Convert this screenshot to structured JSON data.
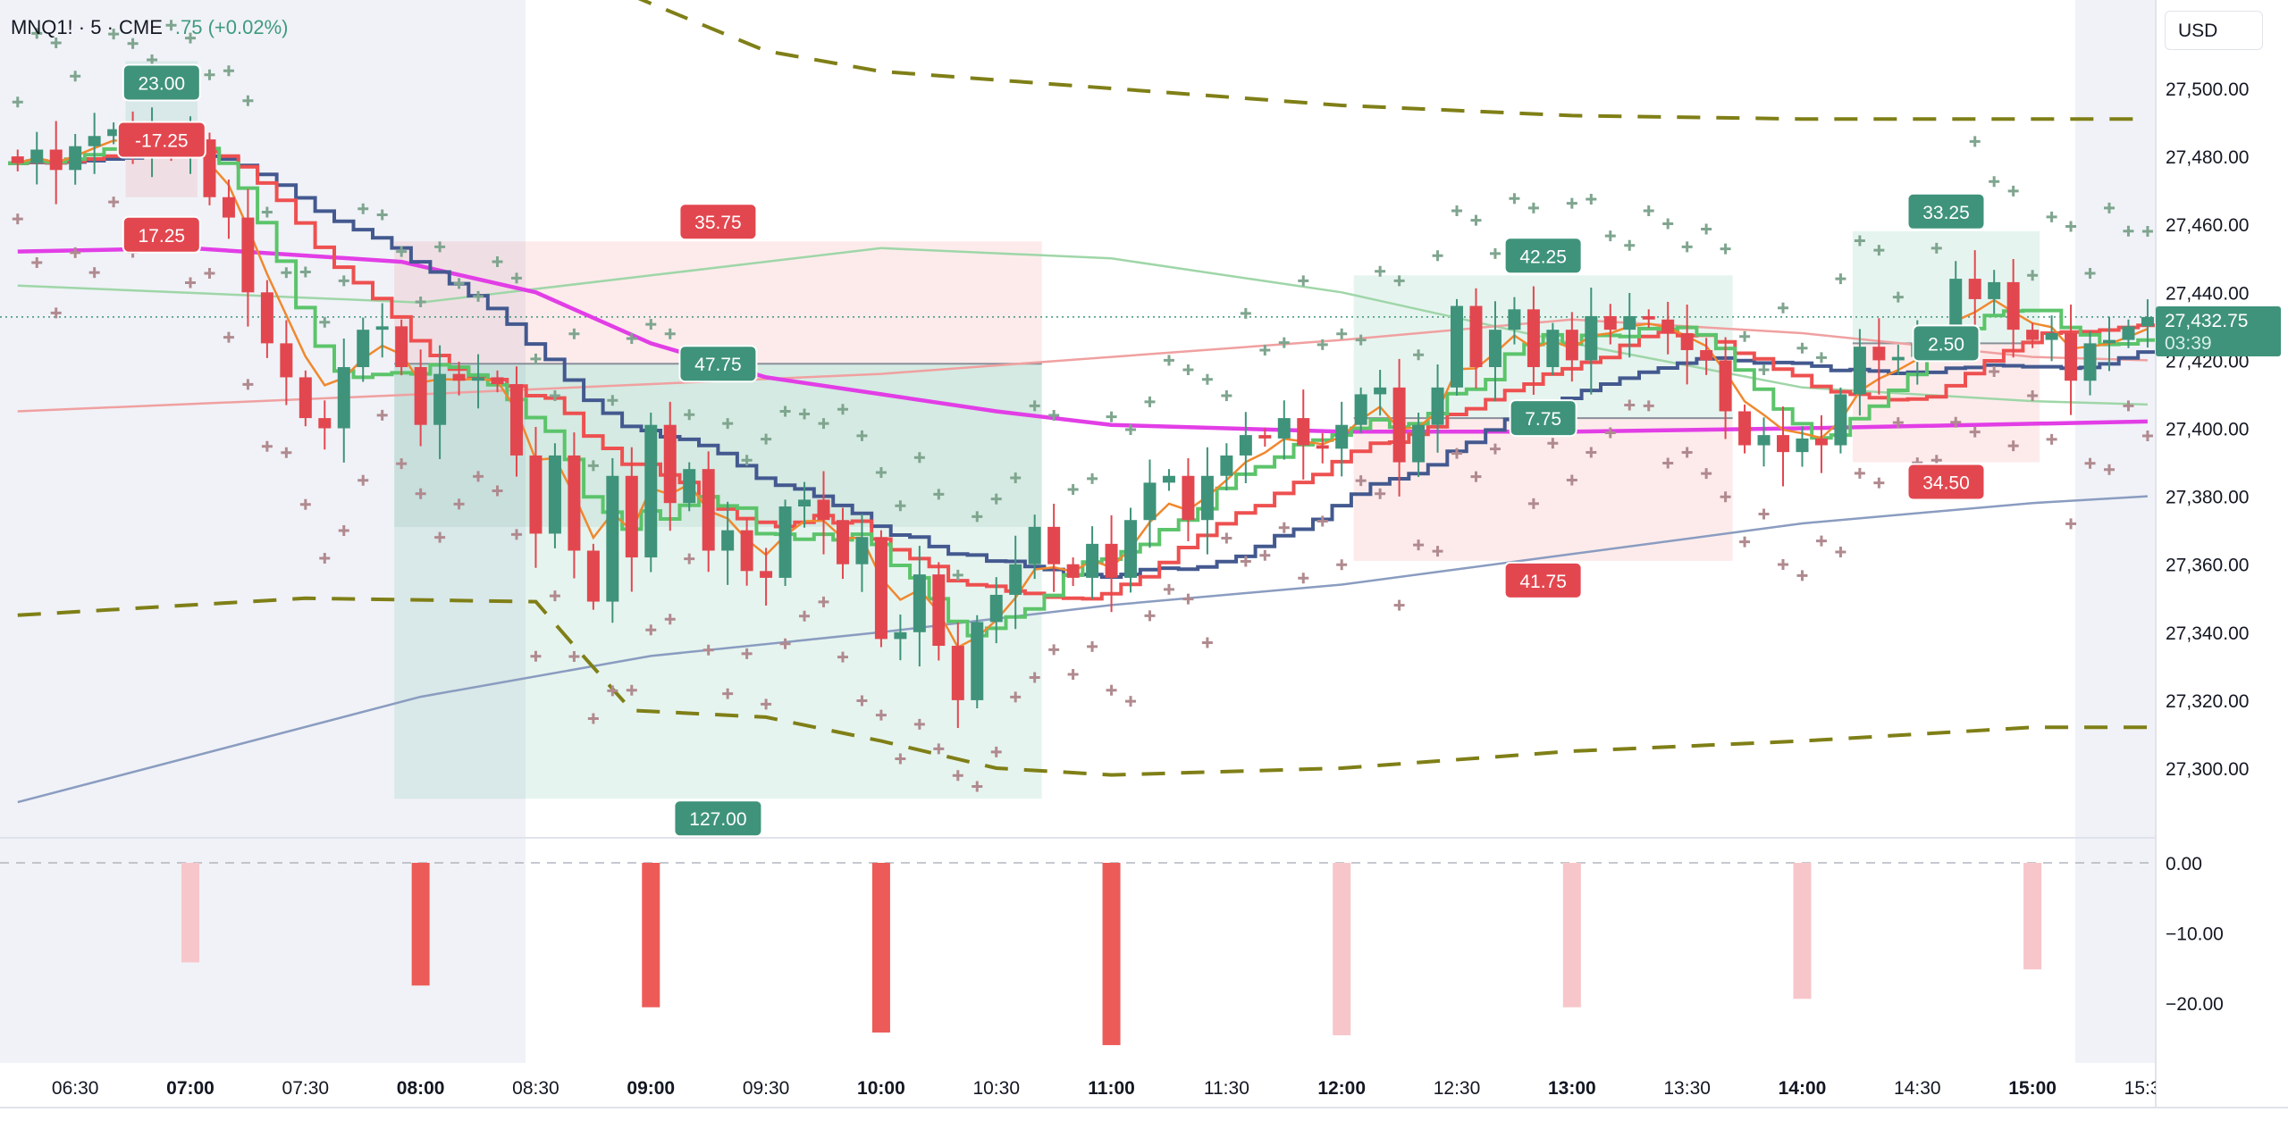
{
  "header": {
    "symbol": "MNQ1! · 5 · CME",
    "change": ".75 (+0.02%)"
  },
  "currency_button": "USD",
  "last_price": {
    "price": "27,432.75",
    "countdown": "03:39"
  },
  "colors": {
    "up": "#3f937a",
    "down": "#e2474f",
    "ema_fast": "#f0882e",
    "step_fast": "#5cc46b",
    "step_mid": "#ee5050",
    "step_slow": "#43598f",
    "ma_magenta": "#e23ee6",
    "ma_blue": "#8a9cc0",
    "ma_pink": "#f0a0a0",
    "ma_lightgreen": "#9fd6a8",
    "band": "#7f7f17",
    "hist_strong": "#ec5b58",
    "hist_weak": "#f7c6ca"
  },
  "chart_data": {
    "type": "candlestick",
    "title": "MNQ1! · 5 · CME",
    "ylabel": "USD",
    "ylim": [
      27280,
      27540
    ],
    "y_ticks": [
      "27,500.00",
      "27,480.00",
      "27,460.00",
      "27,440.00",
      "27,420.00",
      "27,400.00",
      "27,380.00",
      "27,360.00",
      "27,340.00",
      "27,320.00",
      "27,300.00"
    ],
    "y_tick_values": [
      27500,
      27480,
      27460,
      27440,
      27420,
      27400,
      27380,
      27360,
      27340,
      27320,
      27300
    ],
    "x_ticks": [
      {
        "label": "06:30",
        "time": "06:30",
        "bold": false
      },
      {
        "label": "07:00",
        "time": "07:00",
        "bold": true
      },
      {
        "label": "07:30",
        "time": "07:30",
        "bold": false
      },
      {
        "label": "08:00",
        "time": "08:00",
        "bold": true
      },
      {
        "label": "08:30",
        "time": "08:30",
        "bold": false
      },
      {
        "label": "09:00",
        "time": "09:00",
        "bold": true
      },
      {
        "label": "09:30",
        "time": "09:30",
        "bold": false
      },
      {
        "label": "10:00",
        "time": "10:00",
        "bold": true
      },
      {
        "label": "10:30",
        "time": "10:30",
        "bold": false
      },
      {
        "label": "11:00",
        "time": "11:00",
        "bold": true
      },
      {
        "label": "11:30",
        "time": "11:30",
        "bold": false
      },
      {
        "label": "12:00",
        "time": "12:00",
        "bold": true
      },
      {
        "label": "12:30",
        "time": "12:30",
        "bold": false
      },
      {
        "label": "13:00",
        "time": "13:00",
        "bold": true
      },
      {
        "label": "13:30",
        "time": "13:30",
        "bold": false
      },
      {
        "label": "14:00",
        "time": "14:00",
        "bold": true
      },
      {
        "label": "14:30",
        "time": "14:30",
        "bold": false
      },
      {
        "label": "15:00",
        "time": "15:00",
        "bold": true
      },
      {
        "label": "15:30",
        "time": "15:30",
        "bold": false
      }
    ],
    "first_bar_time": "06:15",
    "bar_minutes": 5,
    "closes": [
      27478,
      27482,
      27476,
      27483,
      27486,
      27488,
      27484,
      27486,
      27483,
      27485,
      27468,
      27462,
      27440,
      27425,
      27415,
      27403,
      27400,
      27418,
      27429,
      27430,
      27418,
      27401,
      27416,
      27414,
      27415,
      27413,
      27392,
      27369,
      27392,
      27364,
      27349,
      27386,
      27362,
      27401,
      27378,
      27388,
      27364,
      27370,
      27358,
      27356,
      27377,
      27379,
      27373,
      27360,
      27368,
      27338,
      27340,
      27357,
      27336,
      27320,
      27343,
      27351,
      27360,
      27371,
      27360,
      27356,
      27366,
      27356,
      27373,
      27384,
      27386,
      27373,
      27386,
      27392,
      27398,
      27397,
      27403,
      27395,
      27394,
      27401,
      27410,
      27412,
      27390,
      27401,
      27412,
      27436,
      27418,
      27429,
      27435,
      27418,
      27429,
      27420,
      27433,
      27429,
      27433,
      27432,
      27428,
      27423,
      27420,
      27405,
      27395,
      27398,
      27393,
      27397,
      27395,
      27410,
      27424,
      27420,
      27421,
      27425,
      27428,
      27444,
      27438,
      27443,
      27429,
      27426,
      27428,
      27414,
      27425,
      27426,
      27430,
      27432.75
    ],
    "overlays": {
      "ma_magenta": [
        [
          "06:15",
          27452
        ],
        [
          "07:00",
          27453
        ],
        [
          "07:55",
          27449
        ],
        [
          "08:30",
          27440
        ],
        [
          "09:00",
          27425
        ],
        [
          "09:30",
          27415
        ],
        [
          "10:00",
          27410
        ],
        [
          "10:30",
          27405
        ],
        [
          "11:00",
          27401
        ],
        [
          "12:00",
          27399
        ],
        [
          "13:00",
          27399
        ],
        [
          "14:00",
          27400
        ],
        [
          "15:30",
          27402
        ]
      ],
      "ma_blue": [
        [
          "06:15",
          27290
        ],
        [
          "08:00",
          27321
        ],
        [
          "09:00",
          27333
        ],
        [
          "10:00",
          27340
        ],
        [
          "11:00",
          27348
        ],
        [
          "12:00",
          27354
        ],
        [
          "13:00",
          27363
        ],
        [
          "14:00",
          27372
        ],
        [
          "15:00",
          27378
        ],
        [
          "15:30",
          27380
        ]
      ],
      "ma_pink": [
        [
          "06:15",
          27405
        ],
        [
          "08:00",
          27410
        ],
        [
          "10:00",
          27416
        ],
        [
          "12:00",
          27426
        ],
        [
          "13:00",
          27432
        ],
        [
          "14:00",
          27428
        ],
        [
          "15:00",
          27421
        ],
        [
          "15:30",
          27420
        ]
      ],
      "ma_lightgreen": [
        [
          "06:15",
          27442
        ],
        [
          "08:00",
          27437
        ],
        [
          "09:00",
          27445
        ],
        [
          "10:00",
          27453
        ],
        [
          "11:00",
          27450
        ],
        [
          "12:00",
          27440
        ],
        [
          "13:00",
          27425
        ],
        [
          "14:00",
          27412
        ],
        [
          "15:00",
          27408
        ],
        [
          "15:30",
          27407
        ]
      ],
      "band_upper": [
        [
          "08:45",
          27532
        ],
        [
          "09:00",
          27525
        ],
        [
          "09:30",
          27511
        ],
        [
          "10:00",
          27505
        ],
        [
          "11:00",
          27500
        ],
        [
          "12:00",
          27495
        ],
        [
          "13:00",
          27492
        ],
        [
          "14:00",
          27491
        ],
        [
          "15:30",
          27491
        ]
      ],
      "band_lower": [
        [
          "06:15",
          27345
        ],
        [
          "07:30",
          27350
        ],
        [
          "08:30",
          27349
        ],
        [
          "08:40",
          27336
        ],
        [
          "08:55",
          27317
        ],
        [
          "09:30",
          27315
        ],
        [
          "10:00",
          27308
        ],
        [
          "10:30",
          27300
        ],
        [
          "11:00",
          27298
        ],
        [
          "12:00",
          27300
        ],
        [
          "13:00",
          27305
        ],
        [
          "14:00",
          27308
        ],
        [
          "15:00",
          27312
        ],
        [
          "15:30",
          27312
        ]
      ]
    },
    "positions": [
      {
        "start": "06:45",
        "end": "07:00",
        "target": 27508,
        "entry": 27485,
        "stop": 27468,
        "target_label": "23.00",
        "entry_label": "-17.25",
        "stop_label": "17.25",
        "target_color": "green",
        "entry_color": "red",
        "stop_color": "red"
      },
      {
        "start": "07:55",
        "end": "10:40",
        "target": 27291,
        "entry": 27419,
        "stop": 27455,
        "inner_target": 27371,
        "target_label": "127.00",
        "entry_label": "47.75",
        "stop_label": "35.75",
        "target_color": "green",
        "entry_color": "green",
        "stop_color": "red"
      },
      {
        "start": "12:05",
        "end": "13:40",
        "target": 27445,
        "entry": 27403,
        "stop": 27361,
        "target_label": "42.25",
        "entry_label": "7.75",
        "stop_label": "41.75",
        "target_color": "green",
        "entry_color": "green",
        "stop_color": "red"
      },
      {
        "start": "14:15",
        "end": "15:00",
        "target": 27458,
        "entry": 27425,
        "stop": 27390,
        "target_label": "33.25",
        "entry_label": "2.50",
        "stop_label": "34.50",
        "target_color": "green",
        "entry_color": "green",
        "stop_color": "red"
      }
    ],
    "sub_panel": {
      "type": "bar",
      "y_ticks": [
        "0.00",
        "−10.00",
        "−20.00"
      ],
      "y_tick_values": [
        0,
        -10,
        -20
      ],
      "bars": [
        {
          "time": "07:00",
          "value": -14.2,
          "strong": false
        },
        {
          "time": "08:00",
          "value": -17.5,
          "strong": true
        },
        {
          "time": "09:00",
          "value": -20.6,
          "strong": true
        },
        {
          "time": "10:00",
          "value": -24.2,
          "strong": true
        },
        {
          "time": "11:00",
          "value": -26.0,
          "strong": true
        },
        {
          "time": "12:00",
          "value": -24.6,
          "strong": false
        },
        {
          "time": "13:00",
          "value": -20.6,
          "strong": false
        },
        {
          "time": "14:00",
          "value": -19.4,
          "strong": false
        },
        {
          "time": "15:00",
          "value": -15.2,
          "strong": false
        }
      ]
    }
  }
}
